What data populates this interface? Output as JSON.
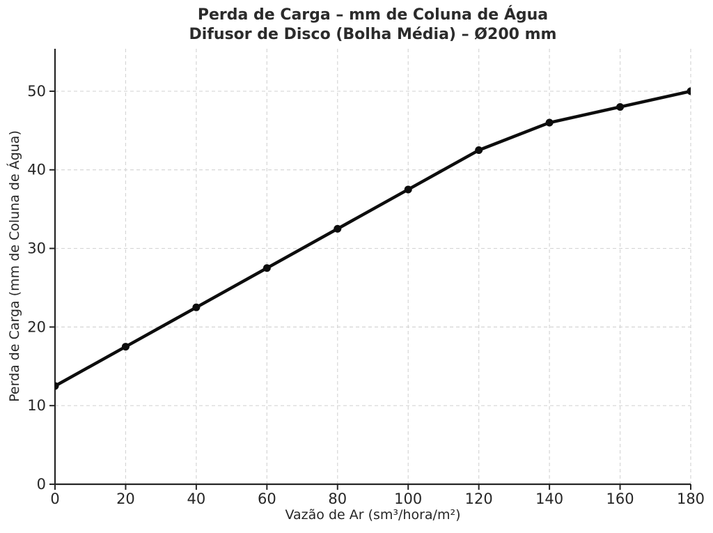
{
  "chart_data": {
    "type": "line",
    "title": "Perda de Carga – mm de Coluna de Água",
    "subtitle": "Difusor de Disco (Bolha Média) – Ø200 mm",
    "xlabel": "Vazão de Ar (sm³/hora/m²)",
    "ylabel": "Perda de Carga (mm de Coluna de Água)",
    "x": [
      0,
      20,
      40,
      60,
      80,
      100,
      120,
      140,
      160,
      180
    ],
    "y": [
      12.5,
      17.5,
      22.5,
      27.5,
      32.5,
      37.5,
      42.5,
      46,
      48,
      50
    ],
    "x_ticks": [
      0,
      20,
      40,
      60,
      80,
      100,
      120,
      140,
      160,
      180
    ],
    "y_ticks": [
      0,
      10,
      20,
      30,
      40,
      50
    ],
    "xlim": [
      0,
      180
    ],
    "ylim": [
      0,
      55.4
    ],
    "grid": true,
    "grid_style": "dashed",
    "legend": null,
    "marker": "circle",
    "colors": {
      "line": "#0d0d0d",
      "marker": "#0d0d0d",
      "grid": "#d6d6d6",
      "axis": "#262626",
      "tick_text": "#262626",
      "title_text": "#2b2b2b",
      "background": "#ffffff"
    }
  }
}
